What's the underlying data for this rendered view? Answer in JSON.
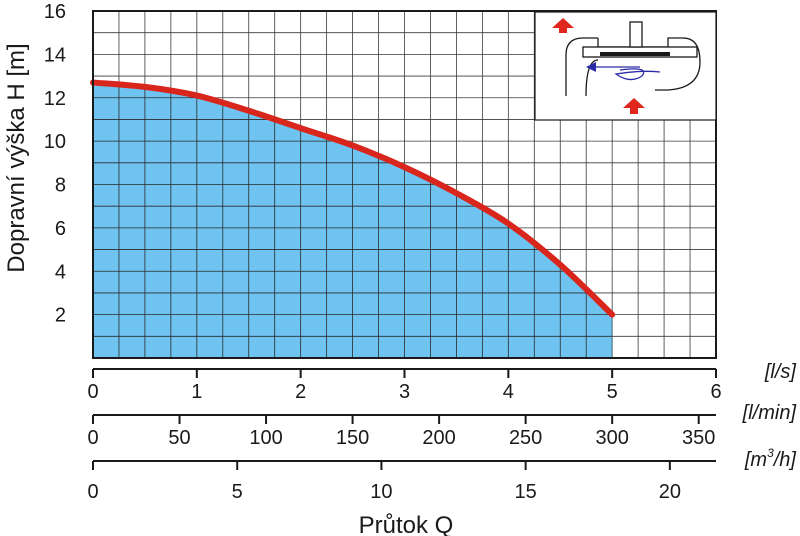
{
  "chart_data": {
    "type": "area",
    "xlabel": "Průtok Q",
    "ylabel": "Dopravní výška H [m]",
    "xlim": [
      0,
      6
    ],
    "ylim": [
      0,
      16
    ],
    "y_ticks": [
      "2",
      "4",
      "6",
      "8",
      "10",
      "12",
      "14",
      "16"
    ],
    "grid": true,
    "series": [
      {
        "x": [
          0,
          0.5,
          1,
          1.5,
          2,
          2.5,
          3,
          3.5,
          4,
          4.5,
          5
        ],
        "values": [
          12.7,
          12.5,
          12.1,
          11.4,
          10.6,
          9.8,
          8.8,
          7.6,
          6.2,
          4.3,
          2.0
        ],
        "line_color": "#d9261c",
        "fill_color": "#6fc3f0"
      }
    ],
    "x_axes": [
      {
        "unit": "[l/s]",
        "ticks": [
          "0",
          "1",
          "2",
          "3",
          "4",
          "5",
          "6"
        ],
        "values": [
          0,
          1,
          2,
          3,
          4,
          5,
          6
        ]
      },
      {
        "unit": "[l/min]",
        "ticks": [
          "0",
          "50",
          "100",
          "150",
          "200",
          "250",
          "300",
          "350"
        ],
        "values": [
          0,
          50,
          100,
          150,
          200,
          250,
          300,
          350
        ]
      },
      {
        "unit": "[m³/h]",
        "unit_base": "[m",
        "unit_sup": "3",
        "unit_tail": "/h]",
        "ticks": [
          "0",
          "5",
          "10",
          "15",
          "20"
        ],
        "values": [
          0,
          5,
          10,
          15,
          20
        ]
      }
    ]
  },
  "inset": {
    "icon": "pump-schematic-icon",
    "arrow_color": "#e0271d",
    "flow_color": "#2b2ba8"
  }
}
